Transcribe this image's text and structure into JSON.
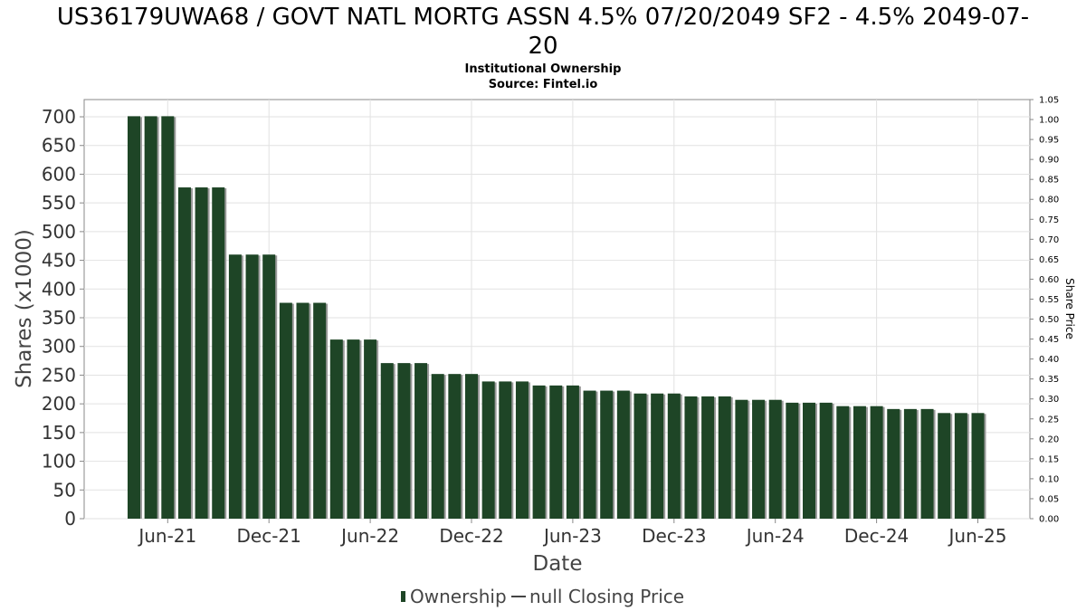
{
  "chart_data": {
    "type": "bar",
    "title": "US36179UWA68 / GOVT NATL MORTG ASSN 4.5% 07/20/2049 SF2 - 4.5% 2049-07-20",
    "title_lines": [
      "US36179UWA68 / GOVT NATL MORTG ASSN 4.5% 07/20/2049 SF2 - 4.5% 2049-07-",
      "20"
    ],
    "subtitle": "Institutional Ownership",
    "source": "Source: Fintel.io",
    "xlabel": "Date",
    "ylabel": "Shares (x1000)",
    "y2label": "Share Price",
    "ylim": [
      0,
      730
    ],
    "y2lim": [
      0,
      1.05
    ],
    "yticks": [
      0,
      50,
      100,
      150,
      200,
      250,
      300,
      350,
      400,
      450,
      500,
      550,
      600,
      650,
      700
    ],
    "y2ticks": [
      "0.00",
      "0.05",
      "0.10",
      "0.15",
      "0.20",
      "0.25",
      "0.30",
      "0.35",
      "0.40",
      "0.45",
      "0.50",
      "0.55",
      "0.60",
      "0.65",
      "0.70",
      "0.75",
      "0.80",
      "0.85",
      "0.90",
      "0.95",
      "1.00",
      "1.05"
    ],
    "xticks": [
      "Jun-21",
      "Dec-21",
      "Jun-22",
      "Dec-22",
      "Jun-23",
      "Dec-23",
      "Jun-24",
      "Dec-24",
      "Jun-25"
    ],
    "grid": true,
    "legend_position": "bottom-center",
    "series": [
      {
        "name": "Ownership",
        "color": "#1e4526",
        "values": [
          701,
          701,
          701,
          577,
          577,
          577,
          460,
          460,
          460,
          376,
          376,
          376,
          312,
          312,
          312,
          271,
          271,
          271,
          252,
          252,
          252,
          239,
          239,
          239,
          232,
          232,
          232,
          223,
          223,
          223,
          218,
          218,
          218,
          213,
          213,
          213,
          207,
          207,
          207,
          202,
          202,
          202,
          196,
          196,
          196,
          191,
          191,
          191,
          184,
          184,
          184
        ]
      },
      {
        "name": "null Closing Price",
        "color": "#444444",
        "values": []
      }
    ]
  },
  "legend": {
    "ownership_label": "Ownership",
    "price_label": "null Closing Price"
  }
}
